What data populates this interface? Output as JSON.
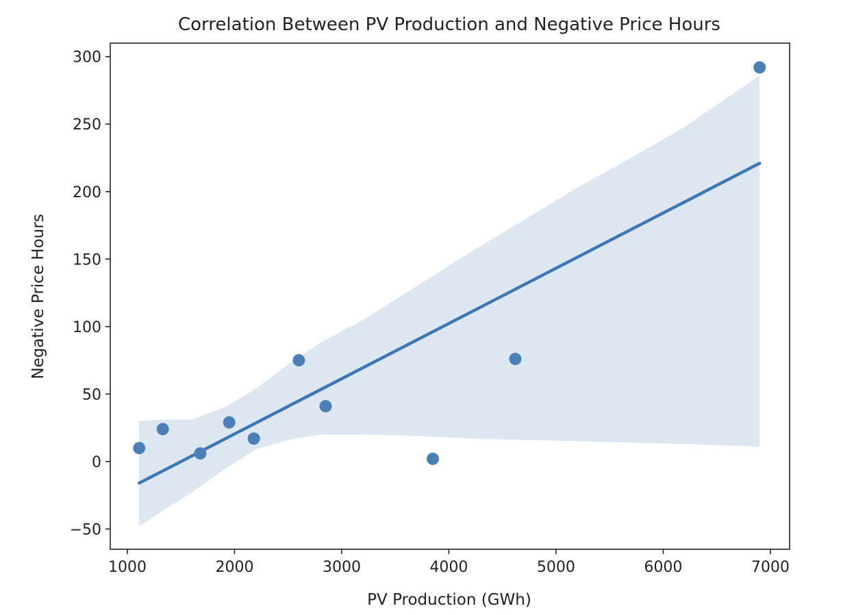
{
  "chart_data": {
    "type": "scatter",
    "title": "Correlation Between PV Production and Negative Price Hours",
    "xlabel": "PV Production (GWh)",
    "ylabel": "Negative Price Hours",
    "xlim": [
      840,
      7180
    ],
    "ylim": [
      -65,
      310
    ],
    "xticks": [
      1000,
      2000,
      3000,
      4000,
      5000,
      6000,
      7000
    ],
    "yticks": [
      -50,
      0,
      50,
      100,
      150,
      200,
      250,
      300
    ],
    "grid": false,
    "legend": "none",
    "colors": {
      "points": "#4c7fb8",
      "line": "#3f76b4",
      "band": "#dde7f1"
    },
    "points": [
      {
        "x": 1110,
        "y": 10
      },
      {
        "x": 1330,
        "y": 24
      },
      {
        "x": 1680,
        "y": 6
      },
      {
        "x": 1950,
        "y": 29
      },
      {
        "x": 2180,
        "y": 17
      },
      {
        "x": 2600,
        "y": 75
      },
      {
        "x": 2850,
        "y": 41
      },
      {
        "x": 3850,
        "y": 2
      },
      {
        "x": 4620,
        "y": 76
      },
      {
        "x": 6900,
        "y": 292
      }
    ],
    "regression": {
      "x": [
        1110,
        6900
      ],
      "y": [
        -16,
        221
      ]
    },
    "confidence_band": {
      "x": [
        1110,
        1300,
        1600,
        1900,
        2200,
        2500,
        2800,
        3200,
        3700,
        4200,
        4700,
        5200,
        5700,
        6200,
        6900
      ],
      "upper": [
        30,
        31,
        31,
        40,
        54,
        72,
        88,
        105,
        130,
        155,
        179,
        203,
        225,
        248,
        286
      ],
      "lower": [
        -48,
        -38,
        -23,
        -6,
        9,
        16,
        20,
        20,
        19,
        17,
        16,
        15,
        14,
        13,
        11
      ]
    }
  }
}
